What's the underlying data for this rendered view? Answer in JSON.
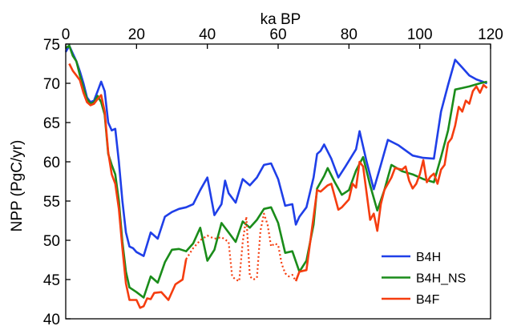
{
  "chart_data": {
    "type": "line",
    "xlabel": "ka BP",
    "ylabel": "NPP (PgC/yr)",
    "xlim": [
      0,
      120
    ],
    "ylim": [
      40,
      75
    ],
    "x_ticks": [
      0,
      20,
      40,
      60,
      80,
      100,
      120
    ],
    "y_ticks": [
      40,
      45,
      50,
      55,
      60,
      65,
      70,
      75
    ],
    "x_axis_position": "top",
    "grid": false,
    "legend_position": "bottom-right",
    "series": [
      {
        "name": "B4H",
        "color": "#1f3fe8",
        "style": "solid",
        "points": [
          [
            0,
            74
          ],
          [
            1,
            74.8
          ],
          [
            2,
            73.8
          ],
          [
            3,
            72.8
          ],
          [
            4,
            71.5
          ],
          [
            5,
            70
          ],
          [
            6,
            68.2
          ],
          [
            7,
            67.6
          ],
          [
            8,
            67.8
          ],
          [
            9,
            69
          ],
          [
            10,
            70.2
          ],
          [
            11,
            69
          ],
          [
            12,
            65
          ],
          [
            13,
            64
          ],
          [
            14,
            64.2
          ],
          [
            15,
            60
          ],
          [
            16,
            55
          ],
          [
            17,
            51
          ],
          [
            18,
            49.2
          ],
          [
            19,
            49
          ],
          [
            20,
            48.5
          ],
          [
            22,
            48
          ],
          [
            24,
            51
          ],
          [
            26,
            50.2
          ],
          [
            28,
            53
          ],
          [
            30,
            53.6
          ],
          [
            32,
            54
          ],
          [
            34,
            54.2
          ],
          [
            36,
            54.6
          ],
          [
            38,
            56.4
          ],
          [
            40,
            58
          ],
          [
            42,
            53.2
          ],
          [
            44,
            54.6
          ],
          [
            45,
            57.6
          ],
          [
            46,
            56
          ],
          [
            48,
            54.8
          ],
          [
            50,
            57.8
          ],
          [
            52,
            57
          ],
          [
            54,
            58
          ],
          [
            56,
            59.6
          ],
          [
            58,
            59.8
          ],
          [
            60,
            57.8
          ],
          [
            62,
            54.4
          ],
          [
            64,
            54.6
          ],
          [
            65,
            52
          ],
          [
            66,
            53
          ],
          [
            68,
            54.2
          ],
          [
            70,
            58
          ],
          [
            71,
            61
          ],
          [
            72,
            61.4
          ],
          [
            73,
            62.2
          ],
          [
            75,
            60.4
          ],
          [
            77,
            58
          ],
          [
            79,
            59.4
          ],
          [
            82,
            61.6
          ],
          [
            83,
            63.9
          ],
          [
            85,
            60
          ],
          [
            87,
            56.5
          ],
          [
            89,
            59.6
          ],
          [
            91,
            62.8
          ],
          [
            94,
            62.1
          ],
          [
            98,
            60.8
          ],
          [
            101,
            60.5
          ],
          [
            104,
            60.4
          ],
          [
            106,
            66.4
          ],
          [
            108,
            69.8
          ],
          [
            110,
            73
          ],
          [
            112,
            72
          ],
          [
            114,
            71
          ],
          [
            116,
            70.5
          ],
          [
            119,
            70
          ]
        ]
      },
      {
        "name": "B4H_NS",
        "color": "#1a8c1a",
        "style": "solid",
        "points": [
          [
            0,
            74.5
          ],
          [
            1,
            74.8
          ],
          [
            2,
            73.5
          ],
          [
            3,
            72.8
          ],
          [
            4,
            71
          ],
          [
            5,
            69.4
          ],
          [
            6,
            68
          ],
          [
            7,
            67.4
          ],
          [
            8,
            67.6
          ],
          [
            9,
            68.4
          ],
          [
            10,
            67.6
          ],
          [
            11,
            66
          ],
          [
            12,
            61
          ],
          [
            13,
            59.6
          ],
          [
            14,
            58.4
          ],
          [
            15,
            55
          ],
          [
            16,
            49.8
          ],
          [
            17,
            46
          ],
          [
            18,
            44
          ],
          [
            20,
            43.4
          ],
          [
            22,
            42.7
          ],
          [
            24,
            45.4
          ],
          [
            26,
            44.6
          ],
          [
            28,
            47.2
          ],
          [
            30,
            48.8
          ],
          [
            32,
            48.9
          ],
          [
            34,
            48.6
          ],
          [
            36,
            49.6
          ],
          [
            38,
            51.6
          ],
          [
            40,
            47.4
          ],
          [
            42,
            48.8
          ],
          [
            44,
            52.2
          ],
          [
            46,
            51
          ],
          [
            48,
            49.8
          ],
          [
            50,
            52.4
          ],
          [
            52,
            51.6
          ],
          [
            54,
            52.6
          ],
          [
            56,
            54
          ],
          [
            58,
            54.2
          ],
          [
            60,
            52.2
          ],
          [
            62,
            48.4
          ],
          [
            64,
            48.6
          ],
          [
            66,
            46
          ],
          [
            68,
            47.4
          ],
          [
            70,
            52
          ],
          [
            71,
            56.6
          ],
          [
            72,
            57.4
          ],
          [
            73,
            58.2
          ],
          [
            74,
            59.2
          ],
          [
            76,
            57.4
          ],
          [
            78,
            55.8
          ],
          [
            80,
            56.4
          ],
          [
            82,
            58.9
          ],
          [
            84,
            60.6
          ],
          [
            86,
            57
          ],
          [
            88,
            53.8
          ],
          [
            90,
            56.4
          ],
          [
            92,
            59.6
          ],
          [
            95,
            58.8
          ],
          [
            98,
            58.4
          ],
          [
            101,
            57.8
          ],
          [
            104,
            57.4
          ],
          [
            106,
            60.6
          ],
          [
            108,
            64
          ],
          [
            110,
            69.2
          ],
          [
            112,
            69.4
          ],
          [
            114,
            69.6
          ],
          [
            117,
            70
          ],
          [
            119,
            70.2
          ]
        ]
      },
      {
        "name": "B4F",
        "color": "#f53d0f",
        "style": "solid",
        "segments": [
          [
            [
              1,
              72.5
            ],
            [
              2,
              71.6
            ],
            [
              3,
              71
            ],
            [
              4,
              70.4
            ],
            [
              5,
              68.8
            ],
            [
              6,
              67.6
            ],
            [
              7,
              67.2
            ],
            [
              8,
              67.4
            ],
            [
              9,
              68
            ],
            [
              10,
              68.5
            ],
            [
              11,
              66.4
            ],
            [
              12,
              61.2
            ],
            [
              13,
              58.4
            ],
            [
              14,
              57.2
            ],
            [
              15,
              54
            ],
            [
              16,
              49
            ],
            [
              17,
              44.5
            ],
            [
              18,
              42.4
            ],
            [
              20,
              42.4
            ],
            [
              21,
              41.4
            ],
            [
              22,
              41.6
            ],
            [
              23,
              42.6
            ],
            [
              24,
              42.5
            ],
            [
              25,
              43.3
            ],
            [
              27,
              43.4
            ],
            [
              29,
              42.4
            ],
            [
              31,
              44.4
            ],
            [
              33,
              45
            ],
            [
              34,
              47.6
            ]
          ],
          [
            [
              65,
              44.8
            ],
            [
              66,
              46
            ],
            [
              68,
              46.2
            ],
            [
              70,
              53
            ],
            [
              71,
              56.4
            ],
            [
              72,
              56.2
            ],
            [
              74,
              57
            ],
            [
              75,
              57.2
            ],
            [
              77,
              53.9
            ],
            [
              78,
              54.2
            ],
            [
              80,
              55.2
            ],
            [
              81,
              57.2
            ],
            [
              82,
              56.7
            ],
            [
              83,
              60
            ],
            [
              84,
              59.4
            ],
            [
              85,
              56
            ],
            [
              86,
              52.6
            ],
            [
              87,
              53.4
            ],
            [
              88,
              51.2
            ],
            [
              89,
              54.6
            ],
            [
              90,
              56.4
            ],
            [
              92,
              58
            ],
            [
              93,
              59.2
            ],
            [
              95,
              59
            ],
            [
              96,
              59.4
            ],
            [
              97,
              57.6
            ],
            [
              98,
              56.6
            ],
            [
              99,
              57.2
            ],
            [
              100,
              58.4
            ],
            [
              101,
              60.2
            ],
            [
              102,
              57.4
            ],
            [
              103,
              58.1
            ],
            [
              104,
              58.5
            ],
            [
              105,
              57.2
            ],
            [
              106,
              59
            ],
            [
              107,
              59.6
            ],
            [
              108,
              62.4
            ],
            [
              109,
              63
            ],
            [
              110,
              64.6
            ],
            [
              111,
              67
            ],
            [
              112,
              66.4
            ],
            [
              113,
              67.8
            ],
            [
              114,
              67.4
            ],
            [
              115,
              69
            ],
            [
              116,
              69.6
            ],
            [
              117,
              68.8
            ],
            [
              118,
              69.8
            ],
            [
              119,
              69.4
            ]
          ]
        ],
        "dotted_segment": [
          [
            34,
            47.6
          ],
          [
            36,
            49
          ],
          [
            38,
            50
          ],
          [
            40,
            50.6
          ],
          [
            42,
            50.2
          ],
          [
            44,
            50.4
          ],
          [
            46,
            49.8
          ],
          [
            47,
            45.4
          ],
          [
            48,
            45
          ],
          [
            49,
            44.8
          ],
          [
            50,
            49.8
          ],
          [
            51,
            53
          ],
          [
            52,
            45.4
          ],
          [
            53,
            45
          ],
          [
            54,
            45.2
          ],
          [
            55,
            51.2
          ],
          [
            56,
            53.4
          ],
          [
            57,
            52
          ],
          [
            58,
            49.2
          ],
          [
            59,
            49.6
          ],
          [
            60,
            49.4
          ],
          [
            61,
            47
          ],
          [
            62,
            45.8
          ],
          [
            63,
            45.4
          ],
          [
            64,
            45.6
          ],
          [
            65,
            44.8
          ]
        ]
      }
    ]
  }
}
